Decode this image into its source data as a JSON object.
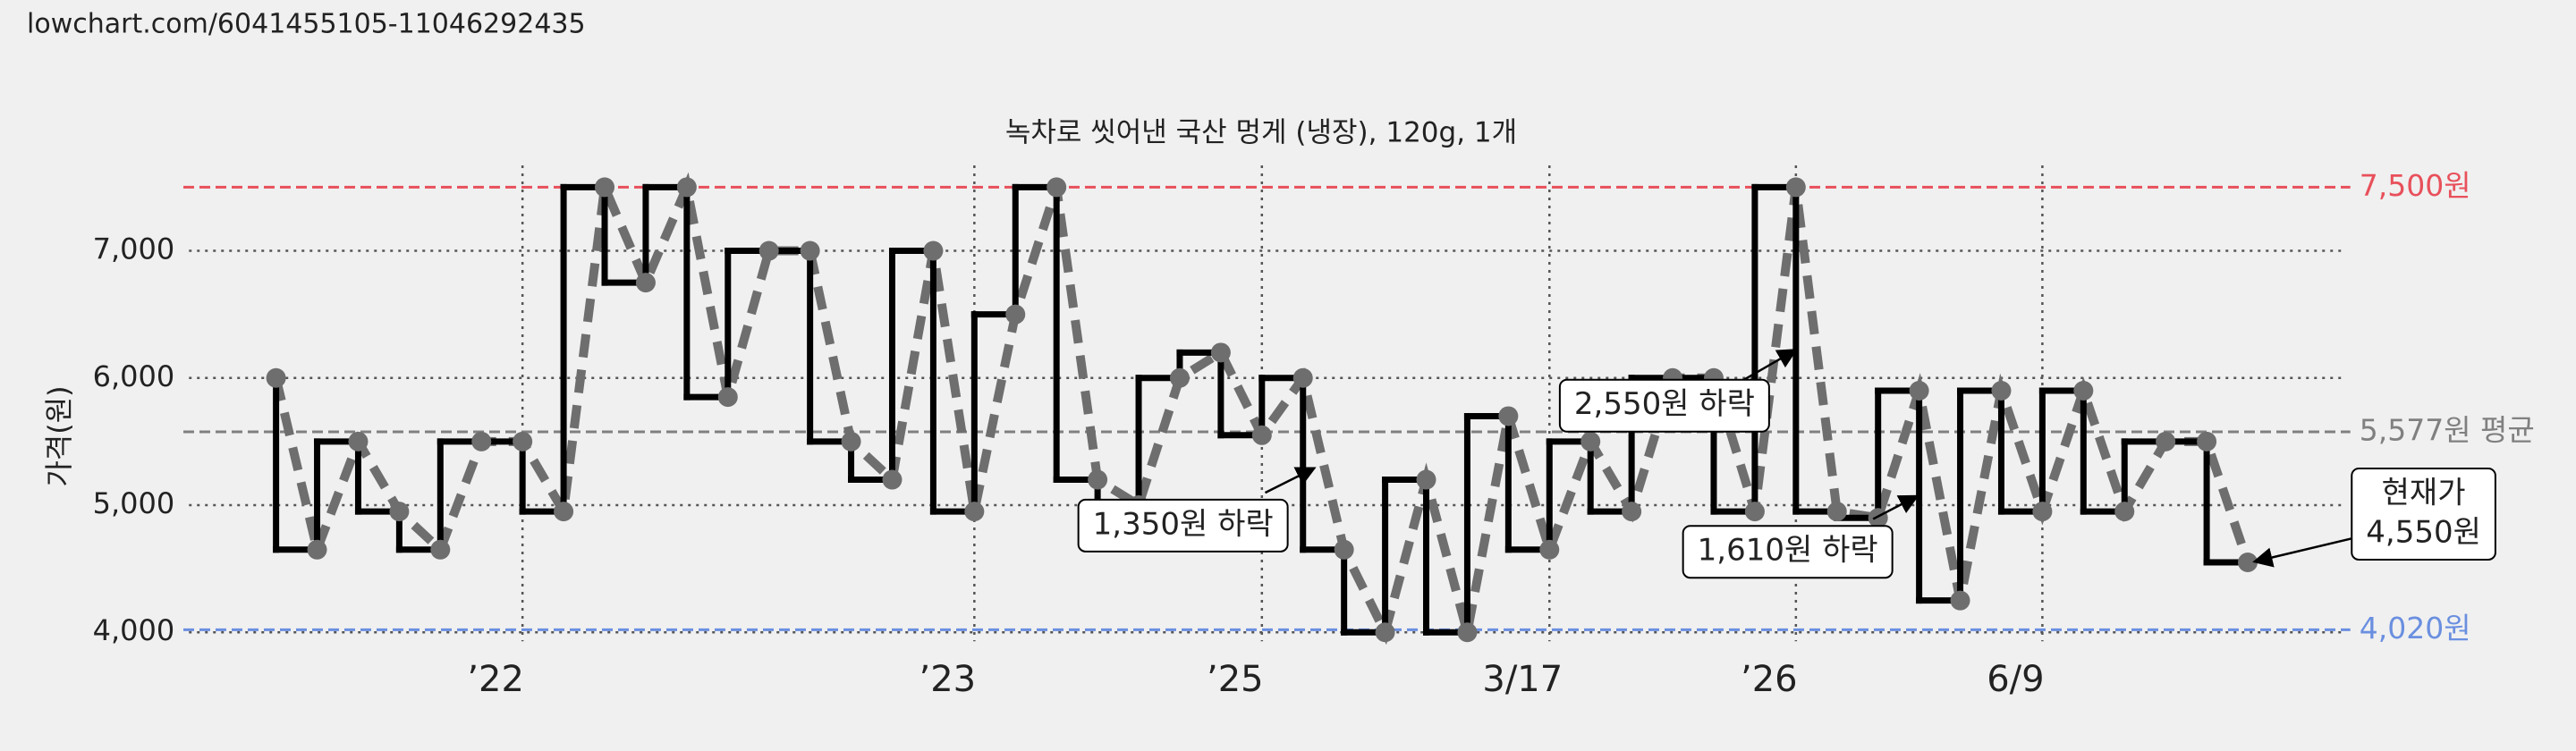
{
  "header": {
    "url": "lowchart.com/6041455105-11046292435"
  },
  "chart_data": {
    "type": "line",
    "title": "녹차로 씻어낸 국산 멍게 (냉장), 120g, 1개",
    "ylabel": "가격(원)",
    "categories": [
      null,
      null,
      null,
      null,
      null,
      null,
      "’22",
      null,
      null,
      null,
      null,
      null,
      null,
      null,
      null,
      null,
      null,
      "’23",
      null,
      null,
      null,
      null,
      null,
      null,
      "’25",
      null,
      null,
      null,
      null,
      null,
      null,
      "3/17",
      null,
      null,
      null,
      null,
      null,
      "’26",
      null,
      null,
      null,
      null,
      null,
      "6/9",
      null,
      null,
      null,
      null,
      null
    ],
    "series": [
      {
        "name": "가격",
        "color": "#000000",
        "values": [
          6000,
          4650,
          5500,
          4950,
          4650,
          5500,
          5500,
          4950,
          7500,
          6750,
          7500,
          5850,
          7000,
          7000,
          5500,
          5200,
          7000,
          4950,
          6500,
          7500,
          5200,
          5000,
          6000,
          6200,
          5550,
          6000,
          4650,
          4000,
          5200,
          4000,
          5700,
          4650,
          5500,
          4950,
          6000,
          6000,
          4950,
          7500,
          4950,
          4900,
          5900,
          4250,
          5900,
          4950,
          5900,
          4950,
          5500,
          5500,
          4550
        ]
      }
    ],
    "ylim": [
      4000,
      7500
    ],
    "yticks": [
      {
        "value": 4000,
        "label": "4,000"
      },
      {
        "value": 5000,
        "label": "5,000"
      },
      {
        "value": 6000,
        "label": "6,000"
      },
      {
        "value": 7000,
        "label": "7,000"
      }
    ],
    "grid": true,
    "reference_lines": [
      {
        "value": 7500,
        "label": "7,500원",
        "color": "#e8505b"
      },
      {
        "value": 5577,
        "label": "5,577원 평균",
        "color": "#808080"
      },
      {
        "value": 4020,
        "label": "4,020원",
        "color": "#6a8fe0"
      }
    ],
    "annotations": [
      {
        "text": "1,350원 하락"
      },
      {
        "text": "2,550원 하락"
      },
      {
        "text": "1,610원 하락"
      },
      {
        "text": [
          "현재가",
          "4,550원"
        ]
      }
    ]
  }
}
